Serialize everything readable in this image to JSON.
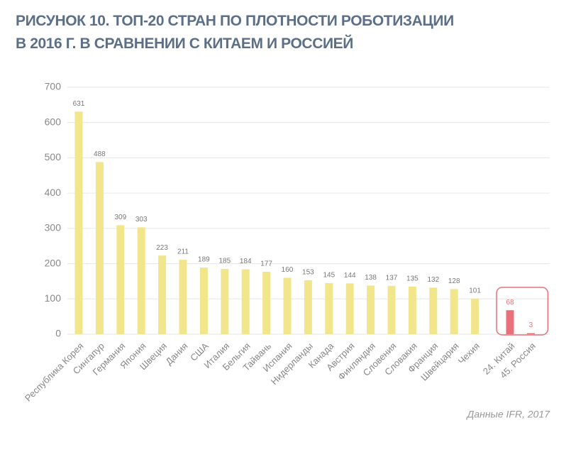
{
  "chart_data": {
    "type": "bar",
    "title": [
      "РИСУНОК 10. ТОП-20 СТРАН ПО ПЛОТНОСТИ РОБОТИЗАЦИИ",
      "В 2016 Г. В СРАВНЕНИИ С КИТАЕМ И РОССИЕЙ"
    ],
    "categories": [
      "Республика Корея",
      "Сингапур",
      "Германия",
      "Япония",
      "Швеция",
      "Дания",
      "США",
      "Италия",
      "Бельгия",
      "Тайвань",
      "Испания",
      "Нидерланды",
      "Канада",
      "Австрия",
      "Финляндия",
      "Словения",
      "Словакия",
      "Франция",
      "Швейцария",
      "Чехия",
      "24. Китай",
      "45. Россия"
    ],
    "values": [
      631,
      488,
      309,
      303,
      223,
      211,
      189,
      185,
      184,
      177,
      160,
      153,
      145,
      144,
      138,
      137,
      135,
      132,
      128,
      101,
      68,
      3
    ],
    "colors": [
      "#f1e68c",
      "#f1e68c",
      "#f1e68c",
      "#f1e68c",
      "#f1e68c",
      "#f1e68c",
      "#f1e68c",
      "#f1e68c",
      "#f1e68c",
      "#f1e68c",
      "#f1e68c",
      "#f1e68c",
      "#f1e68c",
      "#f1e68c",
      "#f1e68c",
      "#f1e68c",
      "#f1e68c",
      "#f1e68c",
      "#f1e68c",
      "#f1e68c",
      "#e8707a",
      "#e8707a"
    ],
    "ylim": [
      0,
      700
    ],
    "yticks": [
      0,
      100,
      200,
      300,
      400,
      500,
      600,
      700
    ],
    "grid": true,
    "source": "Данные IFR, 2017"
  }
}
